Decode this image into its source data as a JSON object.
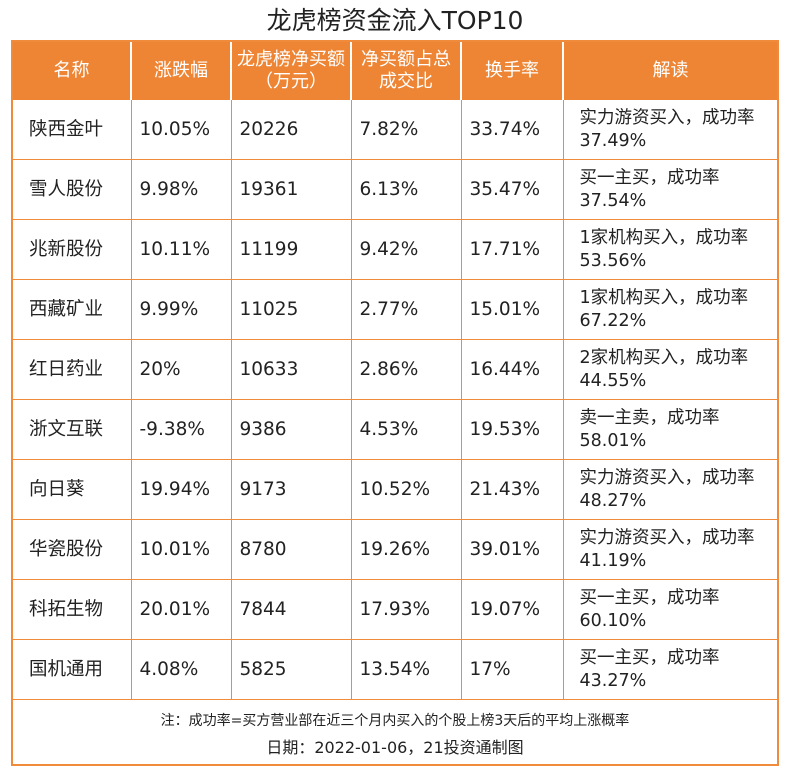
{
  "title": "龙虎榜资金流入TOP10",
  "headers": [
    "名称",
    "涨跌幅",
    "龙虎榜净买额（万元）",
    "净买额占总成交比",
    "换手率",
    "解读"
  ],
  "rows": [
    {
      "name": "陕西金叶",
      "change": "10.05%",
      "net_buy": "20226",
      "ratio": "7.82%",
      "turnover": "33.74%",
      "note": "实力游资买入，成功率37.49%"
    },
    {
      "name": "雪人股份",
      "change": "9.98%",
      "net_buy": "19361",
      "ratio": "6.13%",
      "turnover": "35.47%",
      "note": "买一主买，成功率37.54%"
    },
    {
      "name": "兆新股份",
      "change": "10.11%",
      "net_buy": "11199",
      "ratio": "9.42%",
      "turnover": "17.71%",
      "note": "1家机构买入，成功率53.56%"
    },
    {
      "name": "西藏矿业",
      "change": "9.99%",
      "net_buy": "11025",
      "ratio": "2.77%",
      "turnover": "15.01%",
      "note": "1家机构买入，成功率67.22%"
    },
    {
      "name": "红日药业",
      "change": "20%",
      "net_buy": "10633",
      "ratio": "2.86%",
      "turnover": "16.44%",
      "note": "2家机构买入，成功率44.55%"
    },
    {
      "name": "浙文互联",
      "change": "-9.38%",
      "net_buy": "9386",
      "ratio": "4.53%",
      "turnover": "19.53%",
      "note": "卖一主卖，成功率58.01%"
    },
    {
      "name": "向日葵",
      "change": "19.94%",
      "net_buy": "9173",
      "ratio": "10.52%",
      "turnover": "21.43%",
      "note": "实力游资买入，成功率48.27%"
    },
    {
      "name": "华瓷股份",
      "change": "10.01%",
      "net_buy": "8780",
      "ratio": "19.26%",
      "turnover": "39.01%",
      "note": "实力游资买入，成功率41.19%"
    },
    {
      "name": "科拓生物",
      "change": "20.01%",
      "net_buy": "7844",
      "ratio": "17.93%",
      "turnover": "19.07%",
      "note": "买一主买，成功率60.10%"
    },
    {
      "name": "国机通用",
      "change": "4.08%",
      "net_buy": "5825",
      "ratio": "13.54%",
      "turnover": "17%",
      "note": "买一主买，成功率43.27%"
    }
  ],
  "footnote": "注：成功率=买方营业部在近三个月内买入的个股上榜3天后的平均上涨概率",
  "date_line": "日期：2022-01-06，21投资通制图",
  "colors": {
    "accent": "#ee8535",
    "border": "#ef8b3a"
  }
}
